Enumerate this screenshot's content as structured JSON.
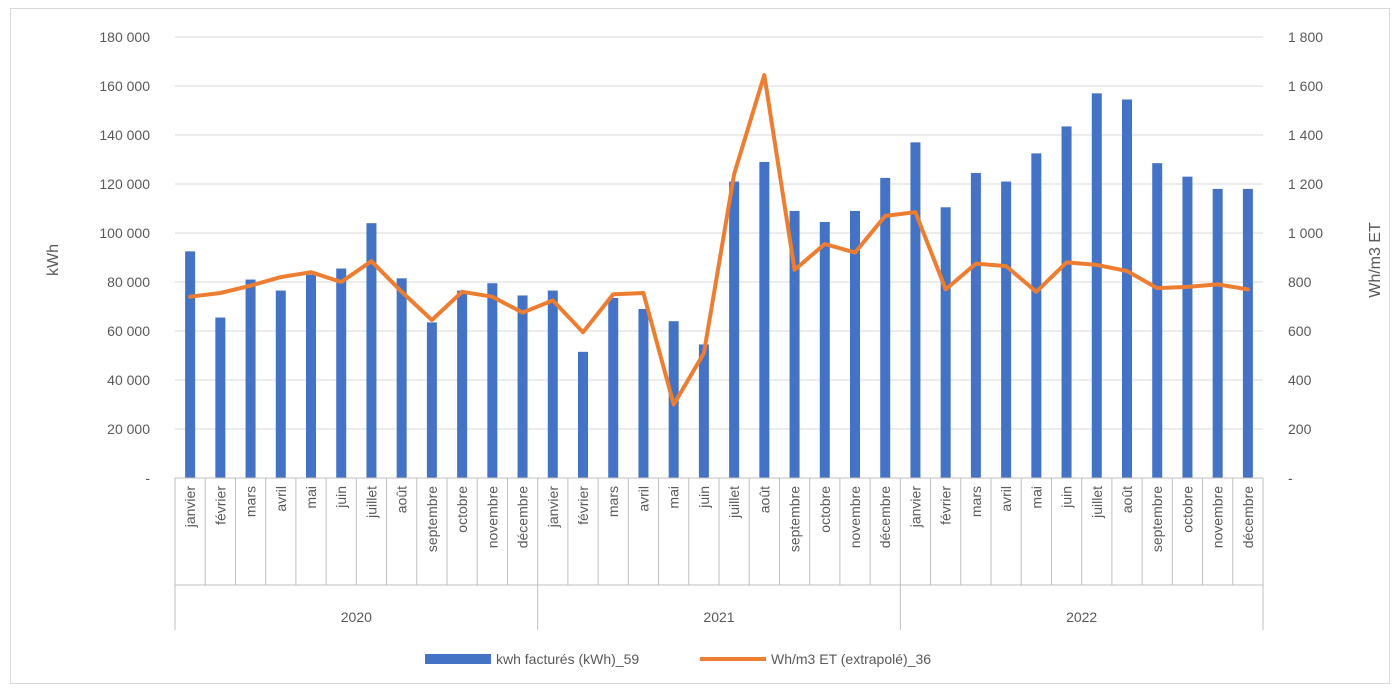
{
  "chart_data": {
    "type": "bar",
    "title": "",
    "ylabel_left": "kWh",
    "ylabel_right": "Wh/m3 ET",
    "ylim_left": [
      0,
      180000
    ],
    "ylim_right": [
      0,
      1800
    ],
    "yticks_left": [
      "-",
      "20 000",
      "40 000",
      "60 000",
      "80 000",
      "100 000",
      "120 000",
      "140 000",
      "160 000",
      "180 000"
    ],
    "yticks_right": [
      "-",
      "200",
      "400",
      "600",
      "800",
      "1 000",
      "1 200",
      "1 400",
      "1 600",
      "1 800"
    ],
    "grid": true,
    "legend_position": "bottom",
    "years": [
      "2020",
      "2021",
      "2022"
    ],
    "months": [
      "janvier",
      "février",
      "mars",
      "avril",
      "mai",
      "juin",
      "juillet",
      "août",
      "septembre",
      "octobre",
      "novembre",
      "décembre"
    ],
    "series": [
      {
        "name": "kwh facturés (kWh)_59",
        "type": "bar",
        "axis": "left",
        "color": "#4472c4",
        "values": [
          92500,
          65500,
          81000,
          76500,
          83000,
          85500,
          104000,
          81500,
          63500,
          76500,
          79500,
          74500,
          76500,
          51500,
          73500,
          69000,
          64000,
          54500,
          121000,
          129000,
          109000,
          104500,
          109000,
          122500,
          137000,
          110500,
          124500,
          121000,
          132500,
          143500,
          157000,
          154500,
          128500,
          123000,
          118000,
          118000
        ]
      },
      {
        "name": "Wh/m3 ET (extrapolé)_36",
        "type": "line",
        "axis": "right",
        "color": "#ed7d31",
        "values": [
          740,
          755,
          785,
          820,
          840,
          800,
          885,
          760,
          645,
          760,
          740,
          675,
          725,
          595,
          750,
          755,
          300,
          510,
          1240,
          1645,
          850,
          955,
          920,
          1070,
          1085,
          770,
          875,
          865,
          760,
          880,
          870,
          845,
          775,
          780,
          790,
          770
        ]
      }
    ]
  }
}
